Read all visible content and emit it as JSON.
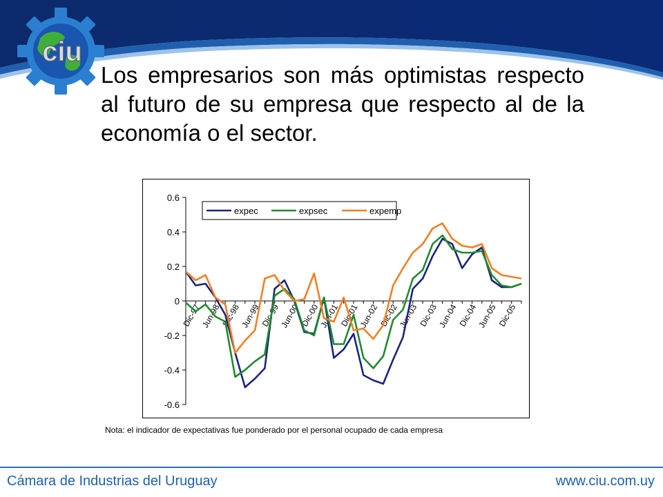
{
  "slide": {
    "title": "Los empresarios son más optimistas respecto al futuro de su empresa que respecto al de la economía o el sector.",
    "note": "Nota: el indicador de expectativas fue ponderado por el personal ocupado de cada empresa",
    "logo_text": "ciu",
    "footer_org": "Cámara de Industrias del Uruguay",
    "footer_url": "www.ciu.com.uy"
  },
  "colors": {
    "header_dark": "#0c2a6b",
    "header_mid": "#1f5fae",
    "footer_text": "#1f5fae"
  },
  "chart_data": {
    "type": "line",
    "title": "",
    "xlabel": "",
    "ylabel": "",
    "ylim": [
      -0.6,
      0.6
    ],
    "y_ticks": [
      0.6,
      0.4,
      0.2,
      0,
      -0.2,
      -0.4,
      -0.6
    ],
    "y_tick_labels": [
      "0.6",
      "0.4",
      "0.2",
      "0",
      "-0.2",
      "-0.4",
      "-0.6"
    ],
    "grid": false,
    "legend_position": "top-left",
    "x_tick_labels": [
      "Dic-97",
      "Jun-98",
      "Dic-98",
      "Jun-99",
      "Dic-99",
      "Jun-00",
      "Dic-00",
      "Jun-01",
      "Dic-01",
      "Jun-02",
      "Dic-02",
      "Jun-03",
      "Dic-03",
      "Jun-04",
      "Dic-04",
      "Jun-05",
      "Dic-05"
    ],
    "series": [
      {
        "name": "expec",
        "color": "#1a237e",
        "values": [
          0.17,
          0.09,
          0.1,
          0.02,
          -0.08,
          -0.3,
          -0.5,
          -0.45,
          -0.39,
          0.07,
          0.12,
          0.0,
          -0.18,
          -0.19,
          0.02,
          -0.33,
          -0.28,
          -0.19,
          -0.43,
          -0.46,
          -0.48,
          -0.34,
          -0.21,
          0.07,
          0.13,
          0.26,
          0.36,
          0.33,
          0.19,
          0.27,
          0.31,
          0.12,
          0.08,
          0.08,
          0.1
        ]
      },
      {
        "name": "expsec",
        "color": "#1f8a2e",
        "values": [
          -0.01,
          -0.06,
          -0.02,
          -0.09,
          -0.12,
          -0.44,
          -0.4,
          -0.35,
          -0.31,
          0.03,
          0.07,
          0.01,
          -0.17,
          -0.2,
          0.02,
          -0.25,
          -0.25,
          -0.08,
          -0.33,
          -0.39,
          -0.32,
          -0.11,
          -0.05,
          0.13,
          0.18,
          0.33,
          0.38,
          0.3,
          0.28,
          0.28,
          0.29,
          0.15,
          0.09,
          0.08,
          0.1
        ]
      },
      {
        "name": "expemp",
        "color": "#f07f24",
        "values": [
          0.17,
          0.12,
          0.15,
          0.02,
          -0.02,
          -0.3,
          -0.23,
          -0.17,
          0.13,
          0.15,
          0.06,
          0.0,
          0.01,
          0.16,
          -0.1,
          -0.12,
          0.02,
          -0.17,
          -0.16,
          -0.22,
          -0.14,
          0.09,
          0.19,
          0.28,
          0.33,
          0.42,
          0.45,
          0.36,
          0.32,
          0.31,
          0.33,
          0.19,
          0.15,
          0.14,
          0.13
        ]
      }
    ]
  }
}
